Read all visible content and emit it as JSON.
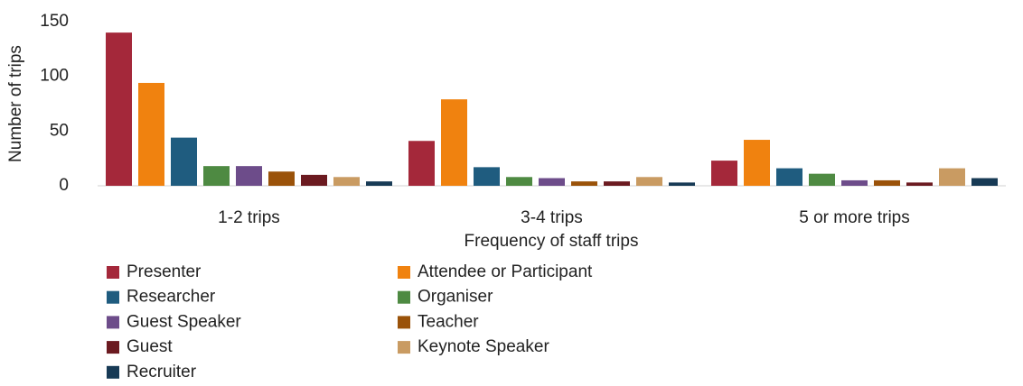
{
  "chart_data": {
    "type": "bar",
    "x_label": "Frequency of staff trips",
    "y_label": "Number of trips",
    "categories": [
      "1-2 trips",
      "3-4 trips",
      "5 or more trips"
    ],
    "series": [
      {
        "name": "Presenter",
        "color": "#a4283a",
        "values": [
          140,
          41,
          23
        ]
      },
      {
        "name": "Attendee or Participant",
        "color": "#f0820f",
        "values": [
          94,
          79,
          42
        ]
      },
      {
        "name": "Researcher",
        "color": "#1f5c7f",
        "values": [
          44,
          17,
          16
        ]
      },
      {
        "name": "Organiser",
        "color": "#4e8a42",
        "values": [
          18,
          8,
          11
        ]
      },
      {
        "name": "Guest Speaker",
        "color": "#6d4c8a",
        "values": [
          18,
          7,
          5
        ]
      },
      {
        "name": "Teacher",
        "color": "#9a5209",
        "values": [
          13,
          4,
          5
        ]
      },
      {
        "name": "Guest",
        "color": "#6b1a20",
        "values": [
          10,
          4,
          3
        ]
      },
      {
        "name": "Keynote Speaker",
        "color": "#c99b62",
        "values": [
          8,
          8,
          16
        ]
      },
      {
        "name": "Recruiter",
        "color": "#173a55",
        "values": [
          4,
          3,
          7
        ]
      }
    ],
    "ylim": [
      0,
      150
    ],
    "yticks": [
      0,
      50,
      100,
      150
    ],
    "grid": false
  }
}
